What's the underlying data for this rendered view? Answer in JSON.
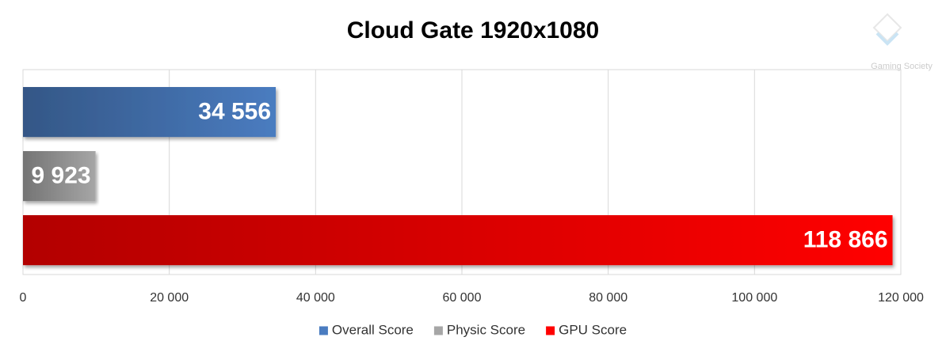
{
  "chart_data": {
    "type": "bar",
    "orientation": "horizontal",
    "title": "Cloud Gate 1920x1080",
    "watermark": "Gaming Society",
    "series": [
      {
        "name": "Overall Score",
        "color": "#4a7cc0",
        "values": [
          34556
        ],
        "value_labels": [
          "34 556"
        ]
      },
      {
        "name": "Physic Score",
        "color": "#a6a6a6",
        "values": [
          9923
        ],
        "value_labels": [
          "9 923"
        ]
      },
      {
        "name": "GPU Score",
        "color": "#ff0000",
        "values": [
          118866
        ],
        "value_labels": [
          "118 866"
        ]
      }
    ],
    "xlim": [
      0,
      120000
    ],
    "xticks": [
      0,
      {
        "value": 20000,
        "label": "20 000"
      },
      {
        "value": 40000,
        "label": "40 000"
      },
      {
        "value": 60000,
        "label": "60 000"
      },
      {
        "value": 80000,
        "label": "80 000"
      },
      {
        "value": 100000,
        "label": "100 000"
      },
      {
        "value": 120000,
        "label": "120 000"
      }
    ],
    "grid": true,
    "legend": "bottom"
  }
}
